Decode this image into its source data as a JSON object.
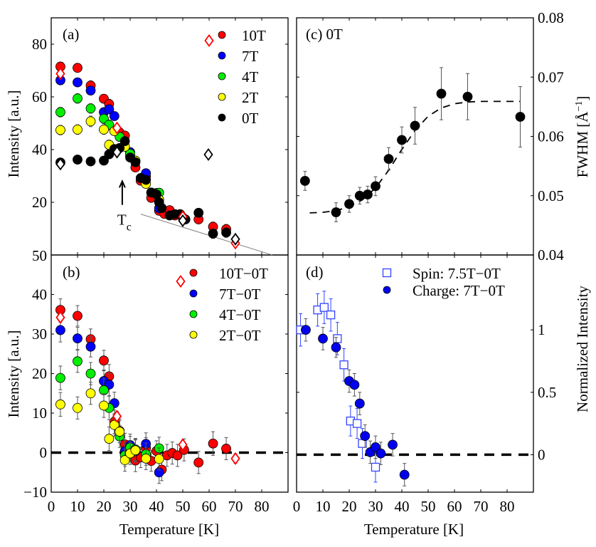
{
  "chart_data": [
    {
      "panel": "a",
      "type": "scatter",
      "panel_label": "(a)",
      "xlabel": "",
      "ylabel": "Intensity [a.u.]",
      "xlim": [
        0,
        90
      ],
      "ylim": [
        0,
        90
      ],
      "yticks": [
        20,
        40,
        60,
        80
      ],
      "ytick_labels": [
        "20",
        "40",
        "60",
        "80"
      ],
      "bottom_ytick_label": "50",
      "xticks": [
        10,
        20,
        30,
        40,
        50,
        60,
        70,
        80
      ],
      "legend_position": "top-right",
      "annotation": {
        "text": "T",
        "subscript": "c",
        "arrow_x": 27,
        "arrow_from": 19,
        "arrow_to": 28
      },
      "series": [
        {
          "name": "10T",
          "color": "#ff0000",
          "marker": "circle",
          "x": [
            3.5,
            10,
            15,
            20,
            22,
            26,
            28,
            30,
            32,
            34,
            36,
            38,
            40,
            41,
            43,
            45,
            47,
            50,
            56,
            61.5,
            66.5
          ],
          "y": [
            71.5,
            71,
            64.3,
            59.3,
            57.3,
            46.5,
            45.3,
            37.5,
            33.2,
            28.2,
            29.8,
            21.7,
            23.5,
            16.8,
            15.6,
            17,
            15,
            14.2,
            13.5,
            10.7,
            9.8
          ],
          "err": [
            1.5,
            1.5,
            1.8,
            1.5,
            1.8,
            1.5,
            1.5,
            1.5,
            1.5,
            1.5,
            1.5,
            1.5,
            1.5,
            1.5,
            1.5,
            1.5,
            1.5,
            1.5,
            1.5,
            1.8,
            1.8
          ]
        },
        {
          "name": "7T",
          "color": "#0000ff",
          "marker": "circle",
          "x": [
            3.5,
            10,
            15,
            20,
            22,
            24,
            30,
            36,
            41
          ],
          "y": [
            66.3,
            65.5,
            62.4,
            54.2,
            55.3,
            52.7,
            39,
            31,
            17.7
          ],
          "err": [
            1.5,
            1.5,
            1.5,
            1.5,
            1.5,
            1.5,
            1.5,
            1.5,
            1.5
          ]
        },
        {
          "name": "4T",
          "color": "#00ee00",
          "marker": "circle",
          "x": [
            3.5,
            10,
            15,
            20,
            22,
            26,
            30,
            32,
            41
          ],
          "y": [
            54.2,
            59.4,
            55.6,
            51.7,
            49.4,
            44.8,
            38.4,
            35.5,
            23.6
          ],
          "err": [
            1.8,
            1.8,
            1.8,
            1.8,
            1.8,
            1.5,
            1.5,
            1.5,
            1.5
          ]
        },
        {
          "name": "2T",
          "color": "#ffff00",
          "marker": "circle",
          "x": [
            3.5,
            10,
            15,
            20,
            22,
            24,
            28,
            32,
            36,
            41
          ],
          "y": [
            47.4,
            47.6,
            50.7,
            47.6,
            41.8,
            47,
            41.1,
            35.8,
            27,
            21
          ],
          "err": [
            1.8,
            1.8,
            2,
            1.8,
            1.8,
            1.5,
            1.5,
            1.5,
            1.5,
            1.5
          ]
        },
        {
          "name": "0T",
          "color": "#000000",
          "marker": "circle",
          "x": [
            3.5,
            10,
            15,
            20,
            22,
            24,
            26,
            28,
            30,
            32,
            34,
            36,
            38,
            40,
            41,
            42,
            45,
            47,
            49,
            51,
            56,
            61.5,
            66.5
          ],
          "y": [
            35.1,
            36.2,
            35.5,
            35.8,
            38.2,
            40.2,
            40.6,
            43.2,
            37,
            35.2,
            29.2,
            28.5,
            23.7,
            23,
            20,
            17.8,
            15,
            15.5,
            15.5,
            13.5,
            16,
            8.1,
            8.5
          ],
          "err": [
            1.5,
            1.5,
            1.5,
            1.5,
            1.5,
            1.5,
            1.5,
            1.5,
            1.5,
            1.5,
            1.5,
            1.5,
            1.5,
            1.5,
            1.5,
            1.5,
            1.5,
            1.5,
            1.5,
            1.5,
            1.5,
            1.8,
            1.8
          ]
        },
        {
          "name": "10T (diamond)",
          "color": "#ff0000",
          "marker": "diamond-open",
          "x": [
            3.5,
            25,
            50,
            70
          ],
          "y": [
            68.8,
            48.2,
            14.5,
            4.5
          ]
        },
        {
          "name": "0T (diamond)",
          "color": "#000000",
          "marker": "diamond-open",
          "x": [
            3.5,
            25,
            50,
            70
          ],
          "y": [
            34.5,
            39,
            13,
            6
          ]
        }
      ],
      "legend": [
        {
          "label": "10T",
          "color": "#ff0000",
          "diamond_color": "#ff0000"
        },
        {
          "label": "7T",
          "color": "#0000ff"
        },
        {
          "label": "4T",
          "color": "#00ee00"
        },
        {
          "label": "2T",
          "color": "#ffff00"
        },
        {
          "label": "0T",
          "color": "#000000",
          "diamond_color": "#000000"
        }
      ],
      "fit_line": {
        "color": "#808080",
        "x": [
          34,
          84
        ],
        "y": [
          15.5,
          0
        ]
      }
    },
    {
      "panel": "b",
      "type": "scatter",
      "panel_label": "(b)",
      "xlabel": "Temperature [K]",
      "ylabel": "Intensity [a.u.]",
      "xlim": [
        0,
        90
      ],
      "ylim": [
        -10,
        50
      ],
      "yticks": [
        -10,
        0,
        10,
        20,
        30,
        40
      ],
      "ytick_labels": [
        "−10",
        "0",
        "10",
        "20",
        "30",
        "40"
      ],
      "xticks": [
        0,
        10,
        20,
        30,
        40,
        50,
        60,
        70,
        80
      ],
      "xtick_labels": [
        "0",
        "10",
        "20",
        "30",
        "40",
        "50",
        "60",
        "70",
        "80"
      ],
      "legend_position": "top-right",
      "zero_line": true,
      "series": [
        {
          "name": "10T−0T",
          "color": "#ff0000",
          "marker": "circle",
          "x": [
            3.5,
            10,
            15,
            20,
            22,
            24,
            26,
            28,
            32,
            34,
            36,
            38,
            40,
            42,
            44,
            46,
            48,
            50.5,
            56,
            61.5,
            66.5
          ],
          "y": [
            36.1,
            34.6,
            28.7,
            23.3,
            19.3,
            7.8,
            5.5,
            2.1,
            -2,
            -1.2,
            1.2,
            -2.1,
            0.4,
            -4.3,
            -0.7,
            -0.1,
            -0.7,
            0.7,
            -2.5,
            2.3,
            1
          ],
          "err": [
            2.8,
            2.6,
            2.6,
            2.6,
            3,
            3,
            3,
            2.8,
            2.8,
            2.6,
            2.6,
            2.6,
            2.6,
            2.8,
            2.8,
            2.8,
            2.8,
            2.8,
            2.8,
            3,
            2.8
          ]
        },
        {
          "name": "7T−0T",
          "color": "#0000ff",
          "marker": "circle",
          "x": [
            3.5,
            10,
            15,
            20,
            22,
            24,
            28,
            30,
            32,
            36,
            41
          ],
          "y": [
            31,
            28.9,
            26.8,
            18.1,
            17.2,
            12.5,
            0.4,
            1.9,
            0.4,
            2.2,
            -5
          ],
          "err": [
            3,
            2.8,
            2.6,
            2.8,
            2.8,
            2.8,
            2.8,
            2.8,
            2.8,
            2.8,
            2.8
          ]
        },
        {
          "name": "4T−0T",
          "color": "#00ee00",
          "marker": "circle",
          "x": [
            3.5,
            10,
            15,
            20,
            22,
            26,
            28,
            30,
            32,
            36,
            41
          ],
          "y": [
            18.9,
            23.1,
            20,
            15.8,
            11.3,
            4.1,
            -0.7,
            1.3,
            0.8,
            -0.4,
            1.1
          ],
          "err": [
            3,
            2.8,
            2.8,
            3,
            3,
            2.8,
            2.8,
            2.8,
            2.8,
            2.8,
            2.8
          ]
        },
        {
          "name": "2T−0T",
          "color": "#ffff00",
          "marker": "circle",
          "x": [
            3.5,
            10,
            15,
            20,
            22,
            24,
            26,
            28,
            30,
            32,
            36,
            41
          ],
          "y": [
            12.2,
            11.3,
            15,
            11.9,
            3.5,
            7,
            5.3,
            -1.9,
            -0.2,
            0.6,
            -1.5,
            -1.6
          ],
          "err": [
            3,
            2.8,
            2.8,
            3,
            3,
            2.8,
            2.8,
            2.8,
            2.8,
            2.8,
            2.8,
            2.8
          ]
        },
        {
          "name": "10T−0T (diamond)",
          "color": "#ff0000",
          "marker": "diamond-open",
          "x": [
            3.5,
            25,
            50,
            70
          ],
          "y": [
            34.2,
            9.2,
            2,
            -1.5
          ],
          "err": [
            1.2,
            1.2,
            1.2,
            1.2
          ]
        }
      ],
      "legend": [
        {
          "label": "10T−0T",
          "color": "#ff0000",
          "diamond_color": "#ff0000"
        },
        {
          "label": "7T−0T",
          "color": "#0000ff"
        },
        {
          "label": "4T−0T",
          "color": "#00ee00"
        },
        {
          "label": "2T−0T",
          "color": "#ffff00"
        }
      ]
    },
    {
      "panel": "c",
      "type": "scatter",
      "panel_label": "(c) 0T",
      "xlabel": "",
      "ylabel": "FWHM [Å⁻¹]",
      "ylabel_main": "FWHM [",
      "ylabel_unit": "Å",
      "ylabel_exp": "−1",
      "ylabel_end": "]",
      "xlim": [
        0,
        90
      ],
      "ylim": [
        0.04,
        0.08
      ],
      "yticks": [
        0.04,
        0.05,
        0.06,
        0.07,
        0.08
      ],
      "ytick_labels": [
        "0.04",
        "0.05",
        "0.06",
        "0.07",
        "0.08"
      ],
      "xticks": [
        10,
        20,
        30,
        40,
        50,
        60,
        70,
        80
      ],
      "yaxis_side": "right",
      "series": [
        {
          "name": "0T",
          "color": "#000000",
          "marker": "circle",
          "x": [
            3.2,
            15,
            20,
            24,
            27,
            30,
            35,
            40,
            45,
            55,
            65,
            85
          ],
          "y": [
            0.0525,
            0.0472,
            0.0486,
            0.05,
            0.0502,
            0.0516,
            0.0562,
            0.0594,
            0.0618,
            0.0672,
            0.0667,
            0.0633
          ],
          "err": [
            0.0016,
            0.0016,
            0.0014,
            0.0014,
            0.0014,
            0.0016,
            0.0019,
            0.0022,
            0.0031,
            0.0044,
            0.0039,
            0.0051
          ]
        }
      ],
      "fit_curve": {
        "style": "dashed",
        "color": "#000000",
        "x": [
          5,
          10,
          15,
          20,
          25,
          30,
          35,
          40,
          45,
          50,
          55,
          60,
          65,
          70,
          75,
          80,
          85
        ],
        "y": [
          0.0471,
          0.0472,
          0.0475,
          0.0481,
          0.0493,
          0.0513,
          0.0543,
          0.0578,
          0.061,
          0.0634,
          0.0648,
          0.0655,
          0.0658,
          0.0659,
          0.0659,
          0.0659,
          0.0659
        ]
      }
    },
    {
      "panel": "d",
      "type": "scatter",
      "panel_label": "(d)",
      "xlabel": "Temperature [K]",
      "ylabel": "Normalized Intensity",
      "xlim": [
        0,
        90
      ],
      "ylim": [
        -0.3,
        1.6
      ],
      "yticks": [
        0,
        0.5,
        1
      ],
      "ytick_labels": [
        "0",
        "0.5",
        "1"
      ],
      "xticks": [
        0,
        10,
        20,
        30,
        40,
        50,
        60,
        70,
        80
      ],
      "xtick_labels": [
        "0",
        "10",
        "20",
        "30",
        "40",
        "50",
        "60",
        "70",
        "80"
      ],
      "yaxis_side": "right",
      "legend_position": "top-right",
      "zero_line": true,
      "series": [
        {
          "name": "Spin: 7.5T−0T",
          "color": "#3344ff",
          "marker": "square-open",
          "x": [
            1.5,
            8,
            10.5,
            13,
            15.5,
            18,
            20.5,
            23,
            25,
            30
          ],
          "y": [
            1.0,
            1.16,
            1.18,
            1.12,
            0.93,
            0.72,
            0.27,
            0.25,
            0.09,
            -0.1
          ],
          "err": [
            0.13,
            0.13,
            0.13,
            0.13,
            0.13,
            0.13,
            0.12,
            0.12,
            0.12,
            0.12
          ]
        },
        {
          "name": "Charge: 7T−0T",
          "color": "#0000ee",
          "marker": "circle",
          "x": [
            3.5,
            10,
            15,
            20,
            22,
            24,
            26,
            28,
            30,
            32,
            36.5,
            41
          ],
          "y": [
            1.0,
            0.93,
            0.86,
            0.59,
            0.56,
            0.41,
            0.15,
            0.02,
            0.06,
            0.01,
            0.08,
            -0.16
          ],
          "err": [
            0.09,
            0.09,
            0.08,
            0.09,
            0.09,
            0.09,
            0.09,
            0.09,
            0.09,
            0.09,
            0.09,
            0.09
          ]
        }
      ],
      "legend": [
        {
          "label": "Spin: 7.5T−0T",
          "color": "#3344ff",
          "marker": "square-open"
        },
        {
          "label": "Charge: 7T−0T",
          "color": "#0000ee",
          "marker": "circle"
        }
      ]
    }
  ]
}
